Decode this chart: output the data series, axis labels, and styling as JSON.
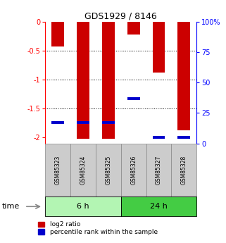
{
  "title": "GDS1929 / 8146",
  "samples": [
    "GSM85323",
    "GSM85324",
    "GSM85325",
    "GSM85326",
    "GSM85327",
    "GSM85328"
  ],
  "log2_ratio": [
    -0.42,
    -2.02,
    -2.02,
    -0.22,
    -0.87,
    -1.87
  ],
  "percentile_rank": [
    17,
    17,
    17,
    37,
    5,
    5
  ],
  "groups": [
    {
      "label": "6 h",
      "indices": [
        0,
        1,
        2
      ],
      "color": "#b3f5b3"
    },
    {
      "label": "24 h",
      "indices": [
        3,
        4,
        5
      ],
      "color": "#44cc44"
    }
  ],
  "ylim_left": [
    -2.1,
    0.0
  ],
  "ylim_right": [
    0,
    100
  ],
  "bar_color": "#cc0000",
  "percentile_color": "#0000cc",
  "bar_width": 0.5,
  "left_yticks": [
    0,
    -0.5,
    -1.0,
    -1.5,
    -2.0
  ],
  "left_yticklabels": [
    "0",
    "-0.5",
    "-1",
    "-1.5",
    "-2"
  ],
  "right_yticks": [
    0,
    25,
    50,
    75,
    100
  ],
  "right_yticklabels": [
    "0",
    "25",
    "50",
    "75",
    "100%"
  ],
  "legend_entries": [
    "log2 ratio",
    "percentile rank within the sample"
  ],
  "time_label": "time",
  "gridlines": [
    -0.5,
    -1.0,
    -1.5
  ],
  "sample_box_color": "#cccccc",
  "sample_box_edge": "#888888"
}
